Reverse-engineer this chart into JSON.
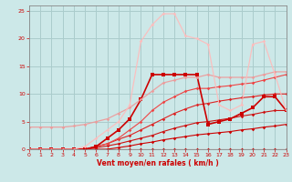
{
  "background_color": "#cce8e8",
  "grid_color": "#aacccc",
  "xlabel": "Vent moyen/en rafales ( km/h )",
  "xlim": [
    0,
    23
  ],
  "ylim": [
    0,
    26
  ],
  "xticks": [
    0,
    1,
    2,
    3,
    4,
    5,
    6,
    7,
    8,
    9,
    10,
    11,
    12,
    13,
    14,
    15,
    16,
    17,
    18,
    19,
    20,
    21,
    22,
    23
  ],
  "yticks": [
    0,
    5,
    10,
    15,
    20,
    25
  ],
  "series": [
    {
      "x": [
        0,
        1,
        2,
        3,
        4,
        5,
        6,
        7,
        8,
        9,
        10,
        11,
        12,
        13,
        14,
        15,
        16,
        17,
        18,
        19,
        20,
        21,
        22,
        23
      ],
      "y": [
        0,
        0,
        0,
        0,
        0,
        0,
        0,
        0,
        0,
        0,
        0,
        0,
        0,
        0,
        0,
        0,
        0,
        0,
        0,
        0,
        0,
        0,
        0,
        0
      ],
      "color": "#cc0000",
      "linewidth": 0.8,
      "marker": "D",
      "markersize": 1.8,
      "alpha": 1.0
    },
    {
      "x": [
        0,
        1,
        2,
        3,
        4,
        5,
        6,
        7,
        8,
        9,
        10,
        11,
        12,
        13,
        14,
        15,
        16,
        17,
        18,
        19,
        20,
        21,
        22,
        23
      ],
      "y": [
        0,
        0,
        0,
        0,
        0,
        0,
        0,
        0,
        0.3,
        0.6,
        1.0,
        1.3,
        1.7,
        2.0,
        2.3,
        2.6,
        2.8,
        3.0,
        3.2,
        3.5,
        3.7,
        4.0,
        4.2,
        4.5
      ],
      "color": "#cc0000",
      "linewidth": 0.8,
      "marker": "D",
      "markersize": 1.8,
      "alpha": 1.0
    },
    {
      "x": [
        0,
        1,
        2,
        3,
        4,
        5,
        6,
        7,
        8,
        9,
        10,
        11,
        12,
        13,
        14,
        15,
        16,
        17,
        18,
        19,
        20,
        21,
        22,
        23
      ],
      "y": [
        0,
        0,
        0,
        0,
        0,
        0,
        0.3,
        0.6,
        1.0,
        1.5,
        2.0,
        2.5,
        3.2,
        3.8,
        4.3,
        4.8,
        5.0,
        5.3,
        5.6,
        6.0,
        6.3,
        6.7,
        7.0,
        7.0
      ],
      "color": "#cc1111",
      "linewidth": 0.8,
      "marker": "D",
      "markersize": 1.8,
      "alpha": 1.0
    },
    {
      "x": [
        0,
        1,
        2,
        3,
        4,
        5,
        6,
        7,
        8,
        9,
        10,
        11,
        12,
        13,
        14,
        15,
        16,
        17,
        18,
        19,
        20,
        21,
        22,
        23
      ],
      "y": [
        0,
        0,
        0,
        0,
        0,
        0,
        0.5,
        1.0,
        1.8,
        2.5,
        3.5,
        4.5,
        5.5,
        6.5,
        7.3,
        8.0,
        8.3,
        8.7,
        9.0,
        9.3,
        9.5,
        9.8,
        10.0,
        10.0
      ],
      "color": "#dd2222",
      "linewidth": 0.8,
      "marker": "D",
      "markersize": 1.8,
      "alpha": 1.0
    },
    {
      "x": [
        0,
        1,
        2,
        3,
        4,
        5,
        6,
        7,
        8,
        9,
        10,
        11,
        12,
        13,
        14,
        15,
        16,
        17,
        18,
        19,
        20,
        21,
        22,
        23
      ],
      "y": [
        0,
        0,
        0,
        0,
        0,
        0,
        0.5,
        1.0,
        2.0,
        3.5,
        5.0,
        7.0,
        8.5,
        9.5,
        10.5,
        11.0,
        11.0,
        11.3,
        11.5,
        11.8,
        12.0,
        12.5,
        13.0,
        13.5
      ],
      "color": "#ee4444",
      "linewidth": 0.8,
      "marker": "D",
      "markersize": 1.8,
      "alpha": 1.0
    },
    {
      "x": [
        0,
        1,
        2,
        3,
        4,
        5,
        6,
        7,
        8,
        9,
        10,
        11,
        12,
        13,
        14,
        15,
        16,
        17,
        18,
        19,
        20,
        21,
        22,
        23
      ],
      "y": [
        0,
        0,
        0,
        0,
        0,
        0,
        0.5,
        2.0,
        3.5,
        5.5,
        9.0,
        13.5,
        13.5,
        13.5,
        13.5,
        13.5,
        4.5,
        5.0,
        5.5,
        6.5,
        7.5,
        9.5,
        9.5,
        7.0
      ],
      "color": "#cc0000",
      "linewidth": 1.2,
      "marker": "s",
      "markersize": 2.5,
      "alpha": 1.0
    },
    {
      "x": [
        0,
        1,
        2,
        3,
        4,
        5,
        6,
        7,
        8,
        9,
        10,
        11,
        12,
        13,
        14,
        15,
        16,
        17,
        18,
        19,
        20,
        21,
        22,
        23
      ],
      "y": [
        4,
        4,
        4,
        4,
        4.2,
        4.5,
        5.0,
        5.5,
        6.5,
        7.5,
        9.0,
        10.5,
        12.0,
        12.5,
        13.0,
        13.0,
        13.5,
        13.0,
        13.0,
        13.0,
        13.0,
        13.5,
        14.0,
        14.0
      ],
      "color": "#ee9999",
      "linewidth": 0.9,
      "marker": "D",
      "markersize": 1.8,
      "alpha": 0.9
    },
    {
      "x": [
        0,
        1,
        2,
        3,
        4,
        5,
        6,
        7,
        8,
        9,
        10,
        11,
        12,
        13,
        14,
        15,
        16,
        17,
        18,
        19,
        20,
        21,
        22,
        23
      ],
      "y": [
        0,
        0,
        0,
        0,
        0,
        0.5,
        2.0,
        3.5,
        5.0,
        8.0,
        19.5,
        22.5,
        24.5,
        24.5,
        20.5,
        20.0,
        19.0,
        8.0,
        7.0,
        8.0,
        19.0,
        19.5,
        13.5,
        7.0
      ],
      "color": "#ffbbbb",
      "linewidth": 0.9,
      "marker": "D",
      "markersize": 1.8,
      "alpha": 0.9
    }
  ]
}
